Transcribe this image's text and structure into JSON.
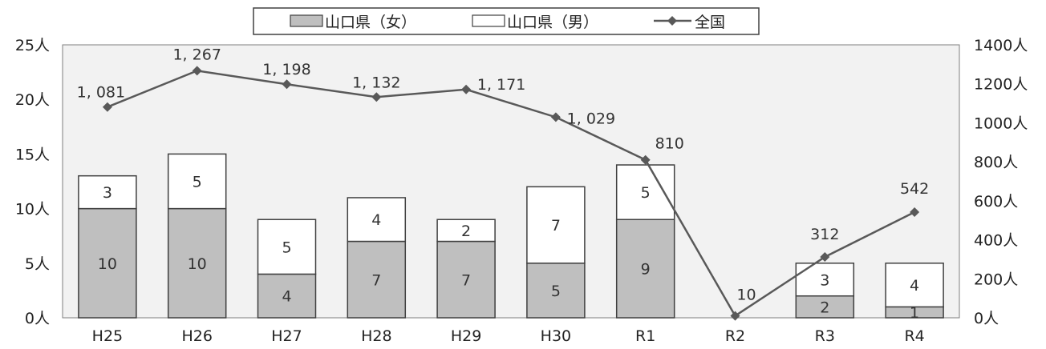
{
  "chart_data": {
    "type": "bar",
    "stacked": true,
    "categories": [
      "H25",
      "H26",
      "H27",
      "H28",
      "H29",
      "H30",
      "R1",
      "R2",
      "R3",
      "R4"
    ],
    "series": [
      {
        "name": "山口県（女）",
        "type": "bar",
        "axis": "left",
        "color": "#bfbfbf",
        "values": [
          10,
          10,
          4,
          7,
          7,
          5,
          9,
          0,
          2,
          1
        ],
        "labels": [
          "10",
          "10",
          "4",
          "7",
          "7",
          "5",
          "9",
          "",
          "2",
          "1"
        ]
      },
      {
        "name": "山口県（男）",
        "type": "bar",
        "axis": "left",
        "color": "#ffffff",
        "values": [
          3,
          5,
          5,
          4,
          2,
          7,
          5,
          0,
          3,
          4
        ],
        "labels": [
          "3",
          "5",
          "5",
          "4",
          "2",
          "7",
          "5",
          "",
          "3",
          "4"
        ]
      },
      {
        "name": "全国",
        "type": "line",
        "axis": "right",
        "color": "#595959",
        "values": [
          1081,
          1267,
          1198,
          1132,
          1171,
          1029,
          810,
          10,
          312,
          542
        ],
        "labels": [
          "1, 081",
          "1, 267",
          "1, 198",
          "1, 132",
          "1, 171",
          "1, 029",
          "810",
          "10",
          "312",
          "542"
        ]
      }
    ],
    "y_left": {
      "ylim": [
        0,
        25
      ],
      "ticks": [
        "0人",
        "5人",
        "10人",
        "15人",
        "20人",
        "25人"
      ]
    },
    "y_right": {
      "ylim": [
        0,
        1400
      ],
      "ticks": [
        "0人",
        "200人",
        "400人",
        "600人",
        "800人",
        "1000人",
        "1200人",
        "1400人"
      ]
    },
    "plot_background": "#f2f2f2",
    "grid": false,
    "legend_position": "top"
  }
}
